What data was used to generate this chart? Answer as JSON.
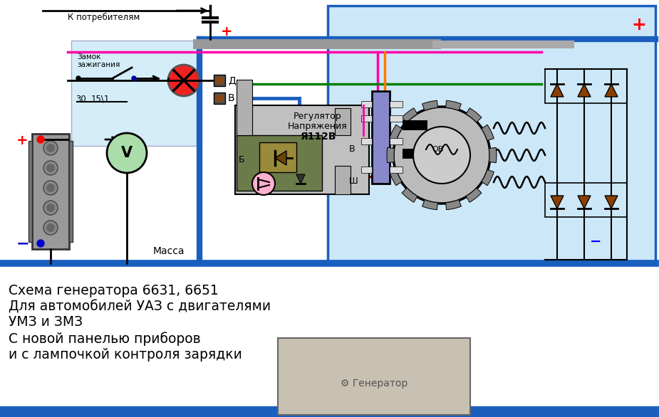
{
  "bg_color": "#ffffff",
  "light_blue_bg": "#cce8f8",
  "left_panel_bg": "#d4edf8",
  "blue_wire": "#1a5fbe",
  "pink_wire": "#ff00aa",
  "green_wire": "#008000",
  "orange_wire": "#ff7700",
  "dark_red_wire": "#880000",
  "gray_bus_color": "#888888",
  "diode_color": "#8B4000",
  "caption_lines": [
    "Схема генератора 6631, 6651",
    "Для автомобилей УАЗ с двигателями",
    "УМЗ и ЗМЗ",
    "С новой панелью приборов",
    "и с лампочкой контроля зарядки"
  ],
  "caption_fontsize": 13.5,
  "reg_labels": [
    "Регулятор",
    "Напряжения",
    "Я112В"
  ]
}
